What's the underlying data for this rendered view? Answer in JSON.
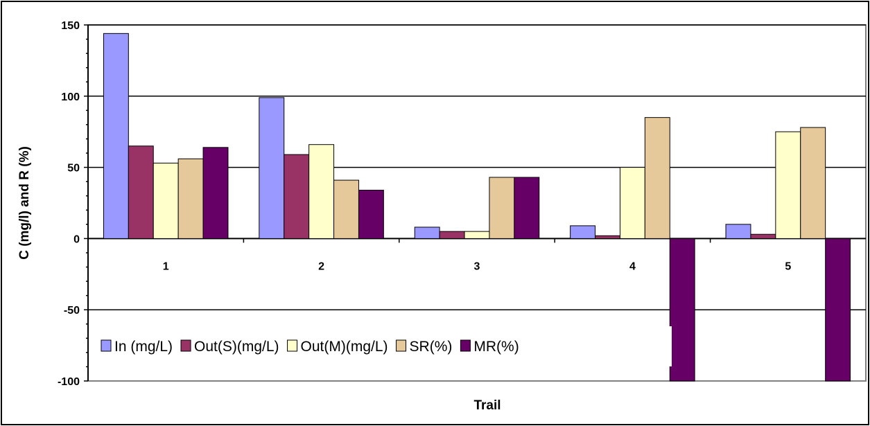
{
  "chart_data": {
    "type": "bar",
    "categories": [
      "1",
      "2",
      "3",
      "4",
      "5"
    ],
    "series": [
      {
        "name": "In (mg/L)",
        "color": "#9999ff",
        "values": [
          144,
          99,
          8,
          9,
          10
        ]
      },
      {
        "name": "Out(S)(mg/L)",
        "color": "#993366",
        "values": [
          65,
          59,
          5,
          2,
          3
        ]
      },
      {
        "name": "Out(M)(mg/L)",
        "color": "#ffffcc",
        "values": [
          53,
          66,
          5,
          50,
          75
        ]
      },
      {
        "name": "SR(%)",
        "color": "#e6c99a",
        "values": [
          56,
          41,
          43,
          85,
          78
        ]
      },
      {
        "name": "MR(%)",
        "color": "#660066",
        "values": [
          64,
          34,
          43,
          -100,
          -100
        ]
      }
    ],
    "title": "",
    "xlabel": "Trail",
    "ylabel": "C (mg/l) and R (%)",
    "ylim": [
      -100,
      150
    ],
    "yticks": [
      "150",
      "100",
      "50",
      "0",
      "-50",
      "-100"
    ],
    "ytick_values": [
      150,
      100,
      50,
      0,
      -50,
      -100
    ],
    "grid": true,
    "legend_position": "bottom-left"
  }
}
